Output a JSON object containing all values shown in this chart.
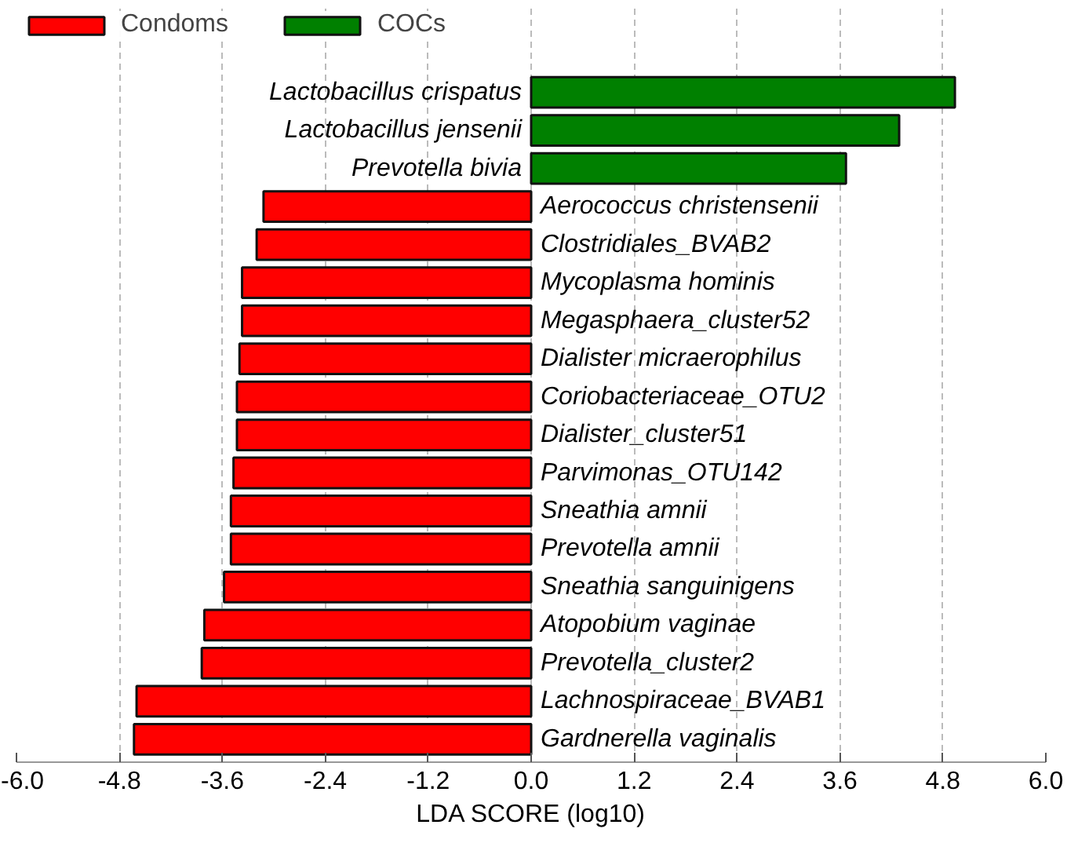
{
  "chart_data": {
    "type": "bar",
    "orientation": "horizontal",
    "xlabel": "LDA SCORE (log10)",
    "categories": [
      "Lactobacillus crispatus",
      "Lactobacillus jensenii",
      "Prevotella bivia",
      "Aerococcus christensenii",
      "Clostridiales_BVAB2",
      "Mycoplasma hominis",
      "Megasphaera_cluster52",
      "Dialister micraerophilus",
      "Coriobacteriaceae_OTU2",
      "Dialister_cluster51",
      "Parvimonas_OTU142",
      "Sneathia amnii",
      "Prevotella amnii",
      "Sneathia sanguinigens",
      "Atopobium vaginae",
      "Prevotella_cluster2",
      "Lachnospiraceae_BVAB1",
      "Gardnerella vaginalis"
    ],
    "series": [
      {
        "name": "Condoms",
        "color": "#ff0000",
        "values": [
          null,
          null,
          null,
          -3.12,
          -3.2,
          -3.37,
          -3.37,
          -3.4,
          -3.43,
          -3.43,
          -3.47,
          -3.5,
          -3.5,
          -3.58,
          -3.81,
          -3.84,
          -4.6,
          -4.63
        ]
      },
      {
        "name": "COCs",
        "color": "#008000",
        "values": [
          4.94,
          4.29,
          3.67,
          null,
          null,
          null,
          null,
          null,
          null,
          null,
          null,
          null,
          null,
          null,
          null,
          null,
          null,
          null
        ]
      }
    ],
    "xlim": [
      -6.0,
      6.0
    ],
    "xticks": [
      {
        "value": -6,
        "label": "-6.0"
      },
      -4.8,
      -3.6,
      -2.4,
      -1.2,
      {
        "value": 0,
        "label": "0.0"
      },
      1.2,
      2.4,
      3.6,
      4.8,
      {
        "value": 6,
        "label": "6.0"
      }
    ],
    "grid": "x",
    "legend": "top left",
    "tick_labels": "x"
  }
}
